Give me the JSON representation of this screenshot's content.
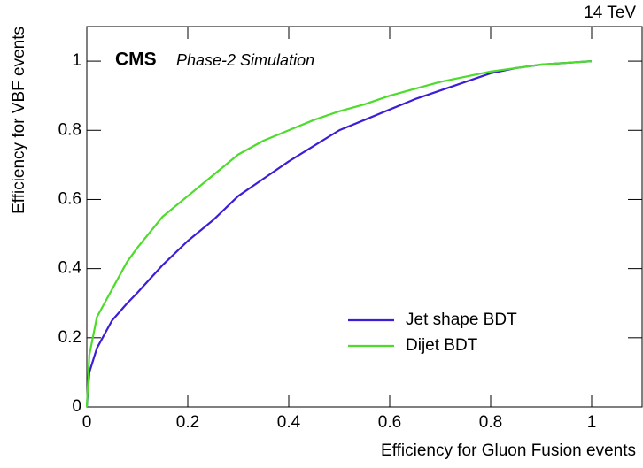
{
  "chart_data": {
    "type": "line",
    "energy_label": "14 TeV",
    "experiment": "CMS",
    "subtitle": "Phase-2 Simulation",
    "x_label": "Efficiency for Gluon Fusion events",
    "y_label": "Efficiency for VBF events",
    "x": [
      0,
      0.005,
      0.02,
      0.05,
      0.08,
      0.1,
      0.15,
      0.2,
      0.25,
      0.3,
      0.35,
      0.4,
      0.45,
      0.5,
      0.55,
      0.6,
      0.65,
      0.7,
      0.75,
      0.8,
      0.85,
      0.9,
      0.95,
      1
    ],
    "series": [
      {
        "name": "Jet shape BDT",
        "color": "#3b1fd8",
        "values": [
          0,
          0.1,
          0.17,
          0.25,
          0.3,
          0.33,
          0.41,
          0.48,
          0.54,
          0.61,
          0.66,
          0.71,
          0.755,
          0.8,
          0.83,
          0.86,
          0.89,
          0.915,
          0.94,
          0.965,
          0.98,
          0.99,
          0.995,
          1
        ]
      },
      {
        "name": "Dijet BDT",
        "color": "#4ddc2a",
        "values": [
          0,
          0.15,
          0.26,
          0.34,
          0.42,
          0.46,
          0.55,
          0.61,
          0.67,
          0.73,
          0.77,
          0.8,
          0.83,
          0.855,
          0.875,
          0.9,
          0.92,
          0.94,
          0.955,
          0.97,
          0.98,
          0.99,
          0.995,
          1
        ]
      }
    ],
    "xlim": [
      0,
      1.1
    ],
    "ylim": [
      0,
      1.1
    ],
    "xticks": [
      0,
      0.2,
      0.4,
      0.6,
      0.8,
      1
    ],
    "yticks": [
      0,
      0.2,
      0.4,
      0.6,
      0.8,
      1
    ],
    "legend_position": "lower right"
  }
}
